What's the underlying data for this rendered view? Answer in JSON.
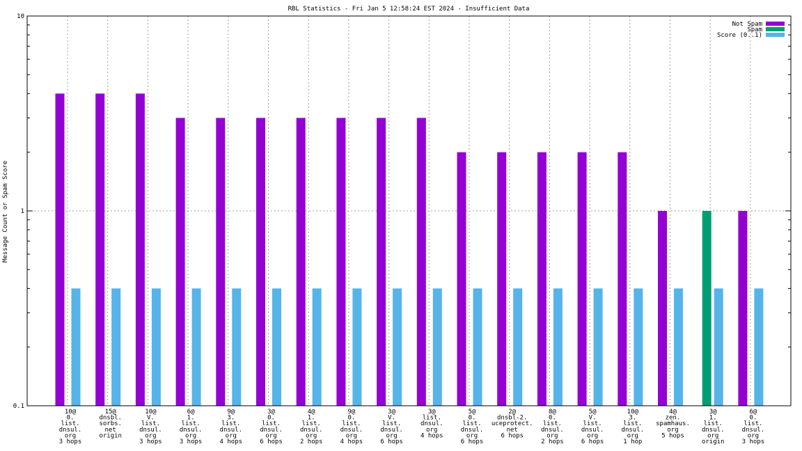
{
  "chart_data": {
    "type": "bar",
    "title": "RBL Statistics - Fri Jan  5 12:58:24 EST 2024 - Insufficient Data",
    "ylabel": "Message Count or Spam Score",
    "xlabel": "",
    "yscale": "log",
    "ylim": [
      0.1,
      10
    ],
    "y_ticks": [
      {
        "value": 0.1,
        "label": "0.1"
      },
      {
        "value": 1,
        "label": "1"
      },
      {
        "value": 10,
        "label": "10"
      }
    ],
    "grid": true,
    "legend_position": "top-right",
    "categories": [
      [
        "10@",
        "0.",
        "list.",
        "dnsul.",
        "org",
        "3 hops"
      ],
      [
        "15@",
        "dnsbl.",
        "sorbs.",
        "net",
        "origin"
      ],
      [
        "10@",
        "V.",
        "list.",
        "dnsul.",
        "org",
        "3 hops"
      ],
      [
        "6@",
        "1.",
        "list.",
        "dnsul.",
        "org",
        "3 hops"
      ],
      [
        "9@",
        "3.",
        "list.",
        "dnsul.",
        "org",
        "4 hops"
      ],
      [
        "3@",
        "0.",
        "list.",
        "dnsul.",
        "org",
        "6 hops"
      ],
      [
        "4@",
        "1.",
        "list.",
        "dnsul.",
        "org",
        "2 hops"
      ],
      [
        "9@",
        "0.",
        "list.",
        "dnsul.",
        "org",
        "4 hops"
      ],
      [
        "3@",
        "V.",
        "list.",
        "dnsul.",
        "org",
        "6 hops"
      ],
      [
        "3@",
        "list.",
        "dnsul.",
        "org",
        "4 hops"
      ],
      [
        "5@",
        "0.",
        "list.",
        "dnsul.",
        "org",
        "6 hops"
      ],
      [
        "2@",
        "dnsbl-2.",
        "uceprotect.",
        "net",
        "6 hops"
      ],
      [
        "8@",
        "0.",
        "list.",
        "dnsul.",
        "org",
        "2 hops"
      ],
      [
        "5@",
        "V.",
        "list.",
        "dnsul.",
        "org",
        "6 hops"
      ],
      [
        "10@",
        "3.",
        "list.",
        "dnsul.",
        "org",
        "1 hop"
      ],
      [
        "4@",
        "zen.",
        "spamhaus.",
        "org",
        "5 hops"
      ],
      [
        "3@",
        "1.",
        "list.",
        "dnsul.",
        "org",
        "origin"
      ],
      [
        "6@",
        "0.",
        "list.",
        "dnsul.",
        "org",
        "3 hops"
      ]
    ],
    "series": [
      {
        "name": "Not Spam",
        "color": "#9400d3",
        "values": [
          4,
          4,
          4,
          3,
          3,
          3,
          3,
          3,
          3,
          3,
          2,
          2,
          2,
          2,
          2,
          1,
          null,
          1
        ]
      },
      {
        "name": "Spam",
        "color": "#009e73",
        "values": [
          null,
          null,
          null,
          null,
          null,
          null,
          null,
          null,
          null,
          null,
          null,
          null,
          null,
          null,
          null,
          null,
          1,
          null
        ]
      },
      {
        "name": "Score (0..1)",
        "color": "#56b4e9",
        "values": [
          0.4,
          0.4,
          0.4,
          0.4,
          0.4,
          0.4,
          0.4,
          0.4,
          0.4,
          0.4,
          0.4,
          0.4,
          0.4,
          0.4,
          0.4,
          0.4,
          0.4,
          0.4
        ]
      }
    ]
  }
}
